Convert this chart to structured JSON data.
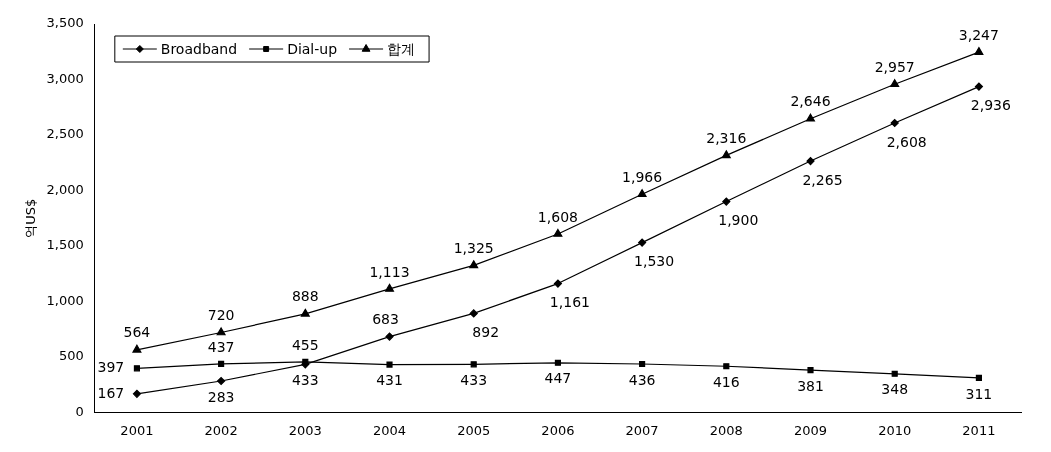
{
  "chart_data": {
    "type": "line",
    "ylabel": "억US$",
    "categories": [
      "2001",
      "2002",
      "2003",
      "2004",
      "2005",
      "2006",
      "2007",
      "2008",
      "2009",
      "2010",
      "2011"
    ],
    "series": [
      {
        "name": "Broadband",
        "color": "#000000",
        "marker": "diamond",
        "values": [
          167,
          283,
          433,
          683,
          892,
          1161,
          1530,
          1900,
          2265,
          2608,
          2936
        ],
        "value_labels": [
          "167",
          "283",
          "433",
          "683",
          "892",
          "1,161",
          "1,530",
          "1,900",
          "2,265",
          "2,608",
          "2,936"
        ]
      },
      {
        "name": "Dial-up",
        "color": "#000000",
        "marker": "square",
        "values": [
          397,
          437,
          455,
          431,
          433,
          447,
          436,
          416,
          381,
          348,
          311
        ],
        "value_labels": [
          "397",
          "437",
          "455",
          "431",
          "433",
          "447",
          "436",
          "416",
          "381",
          "348",
          "311"
        ]
      },
      {
        "name": "합계",
        "color": "#000000",
        "marker": "triangle",
        "values": [
          564,
          720,
          888,
          1113,
          1325,
          1608,
          1966,
          2316,
          2646,
          2957,
          3247
        ],
        "value_labels": [
          "564",
          "720",
          "888",
          "1,113",
          "1,325",
          "1,608",
          "1,966",
          "2,316",
          "2,646",
          "2,957",
          "3,247"
        ]
      }
    ],
    "ylim": [
      0,
      3500
    ],
    "yticks": [
      0,
      500,
      {
        "value": 1000,
        "label": "1,000"
      },
      {
        "value": 1500,
        "label": "1,500"
      },
      {
        "value": 2000,
        "label": "2,000"
      },
      {
        "value": 2500,
        "label": "2,500"
      },
      {
        "value": 3000,
        "label": "3,000"
      },
      {
        "value": 3500,
        "label": "3,500"
      }
    ],
    "grid": false,
    "legend": "top left",
    "line_style": "solid"
  }
}
